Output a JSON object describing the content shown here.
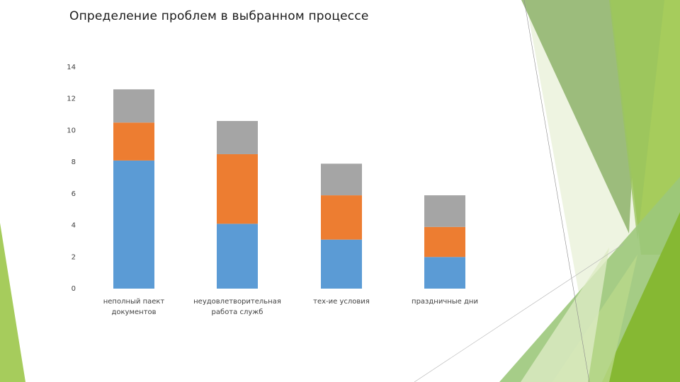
{
  "slide": {
    "title": "Определение проблем в выбранном процессе"
  },
  "theme": {
    "accent_light": "#A6CC5C",
    "accent_mid": "#8FBE3F",
    "accent_dark": "#7DAA4A",
    "accent_pale": "#DDEBC4"
  },
  "chart_data": {
    "type": "bar",
    "stacked": true,
    "categories": [
      [
        "неполный паект",
        "документов"
      ],
      [
        "неудовлетворительная",
        "работа служб"
      ],
      [
        "тех-ие условия"
      ],
      [
        "праздничные дни"
      ]
    ],
    "series": [
      {
        "color": "#5B9BD5",
        "values": [
          8.1,
          4.1,
          3.1,
          2.0
        ]
      },
      {
        "color": "#ED7D31",
        "values": [
          2.4,
          4.4,
          2.8,
          1.9
        ]
      },
      {
        "color": "#A5A5A5",
        "values": [
          2.1,
          2.1,
          2.0,
          2.0
        ]
      }
    ],
    "ylim": [
      0,
      14
    ],
    "yticks": [
      0,
      2,
      4,
      6,
      8,
      10,
      12,
      14
    ],
    "grid": false,
    "legend": "none"
  }
}
